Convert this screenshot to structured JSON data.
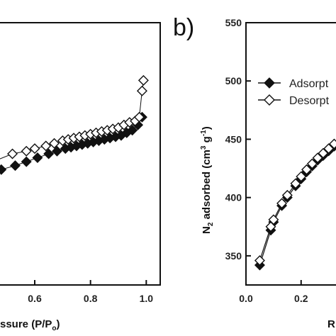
{
  "panel_b_label": "b)",
  "chart_data": [
    {
      "type": "scatter",
      "panel": "a",
      "xlabel": "ssure (P/P",
      "xlabel_sub": "o",
      "xlabel_end": ")",
      "xlim": [
        0.45,
        1.05
      ],
      "ylim": [
        0,
        1
      ],
      "xticks": [
        0.6,
        0.8,
        1.0
      ],
      "xtick_labels": [
        "0.6",
        "0.8",
        "1.0"
      ],
      "marker_colors": {
        "filled": "#111111",
        "open": "#ffffff"
      },
      "series": [
        {
          "name": "Adsorption",
          "marker": "filled-diamond",
          "x": [
            0.45,
            0.48,
            0.53,
            0.57,
            0.61,
            0.65,
            0.68,
            0.71,
            0.73,
            0.75,
            0.77,
            0.79,
            0.81,
            0.83,
            0.85,
            0.87,
            0.89,
            0.91,
            0.93,
            0.95,
            0.97,
            0.985
          ],
          "y": [
            0.43,
            0.44,
            0.455,
            0.47,
            0.485,
            0.5,
            0.51,
            0.52,
            0.525,
            0.53,
            0.535,
            0.54,
            0.545,
            0.55,
            0.555,
            0.56,
            0.565,
            0.57,
            0.58,
            0.59,
            0.61,
            0.64
          ]
        },
        {
          "name": "Desorption",
          "marker": "open-diamond",
          "x": [
            0.45,
            0.52,
            0.57,
            0.6,
            0.64,
            0.67,
            0.7,
            0.72,
            0.74,
            0.76,
            0.78,
            0.8,
            0.82,
            0.84,
            0.86,
            0.88,
            0.9,
            0.92,
            0.94,
            0.96,
            0.975,
            0.985,
            0.99
          ],
          "y": [
            0.47,
            0.5,
            0.51,
            0.52,
            0.53,
            0.54,
            0.55,
            0.555,
            0.56,
            0.565,
            0.57,
            0.575,
            0.58,
            0.585,
            0.59,
            0.595,
            0.6,
            0.61,
            0.62,
            0.625,
            0.64,
            0.74,
            0.78
          ]
        }
      ]
    },
    {
      "type": "line",
      "panel": "b",
      "ylabel_pre": "N",
      "ylabel_sub": "2",
      "ylabel_mid": " adsorbed (cm",
      "ylabel_sup": "3",
      "ylabel_mid2": " g",
      "ylabel_sup2": "-1",
      "ylabel_end": ")",
      "xlabel": "R",
      "xlim": [
        0.0,
        0.36
      ],
      "ylim": [
        325,
        550
      ],
      "yticks": [
        350,
        400,
        450,
        500,
        550
      ],
      "ytick_labels": [
        "350",
        "400",
        "450",
        "500",
        "550"
      ],
      "xticks": [
        0.0,
        0.2
      ],
      "xtick_labels": [
        "0.0",
        "0.2"
      ],
      "legend": {
        "placement": "top-left",
        "entries": [
          "Adsorpt",
          "Desorpt"
        ]
      },
      "series": [
        {
          "name": "Adsorpt",
          "marker": "filled-diamond",
          "x": [
            0.05,
            0.09,
            0.1,
            0.13,
            0.15,
            0.18,
            0.2,
            0.22,
            0.24,
            0.26,
            0.28,
            0.3,
            0.32
          ],
          "y": [
            342,
            372,
            379,
            393,
            400,
            410,
            416,
            422,
            427,
            432,
            436,
            440,
            444
          ]
        },
        {
          "name": "Desorpt",
          "marker": "open-diamond",
          "x": [
            0.05,
            0.09,
            0.1,
            0.13,
            0.15,
            0.18,
            0.2,
            0.22,
            0.24,
            0.26,
            0.28,
            0.3,
            0.32
          ],
          "y": [
            346,
            375,
            381,
            395,
            402,
            412,
            418,
            424,
            429,
            434,
            438,
            442,
            446
          ]
        }
      ]
    }
  ]
}
